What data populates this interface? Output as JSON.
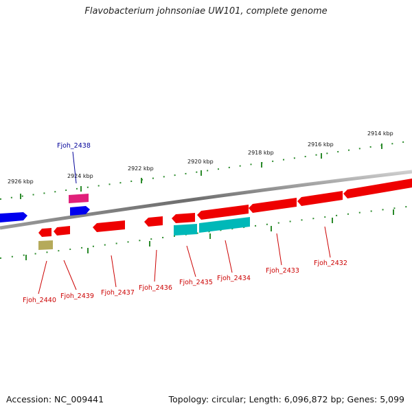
{
  "title": "Flavobacterium johnsoniae UW101, complete genome",
  "footer": {
    "accession": "Accession: NC_009441",
    "summary": "Topology: circular; Length: 6,096,872 bp; Genes: 5,099"
  },
  "ruler_labels": [
    "2926 kbp",
    "2924 kbp",
    "2922 kbp",
    "2920 kbp",
    "2918 kbp",
    "2916 kbp",
    "2914 kbp"
  ],
  "genes": {
    "g2438": "Fjoh_2438",
    "g2440": "Fjoh_2440",
    "g2439": "Fjoh_2439",
    "g2437": "Fjoh_2437",
    "g2436": "Fjoh_2436",
    "g2435": "Fjoh_2435",
    "g2434": "Fjoh_2434",
    "g2433": "Fjoh_2433",
    "g2432": "Fjoh_2432"
  },
  "colors": {
    "backbone": "#777777",
    "ruler_ticks": "#2a8a2a",
    "gene_red": "#ee0000",
    "gene_blue": "#0000ee",
    "gene_cyan": "#00b8b8",
    "gene_magenta": "#e0207a",
    "gene_khaki": "#b5aa5a",
    "label_red": "#cc0000",
    "label_blue": "#000099"
  }
}
